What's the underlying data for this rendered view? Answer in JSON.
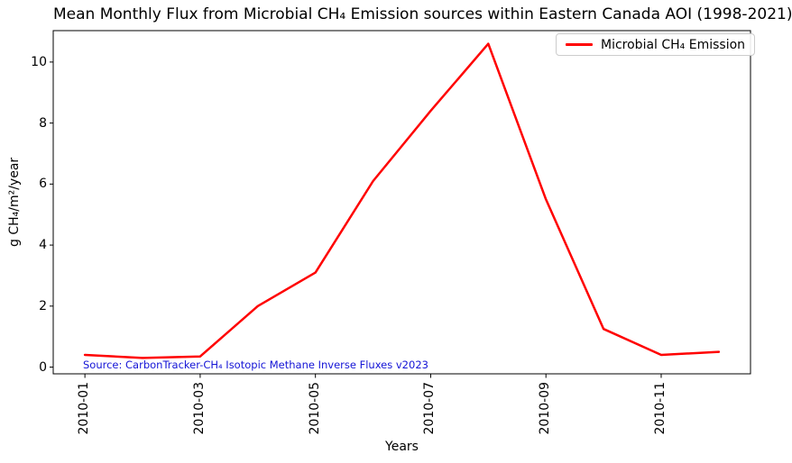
{
  "title": "Mean Monthly Flux from Microbial CH₄ Emission sources within Eastern Canada AOI (1998-2021)",
  "legend": {
    "label": "Microbial CH₄ Emission"
  },
  "source_note": "Source: CarbonTracker-CH₄ Isotopic Methane Inverse Fluxes v2023",
  "colors": {
    "line": "#ff0000",
    "source_note": "#1414d6",
    "axis": "#000000",
    "legend_border": "#cccccc",
    "text": "#000000"
  },
  "chart_data": {
    "type": "line",
    "title": "Mean Monthly Flux from Microbial CH₄ Emission sources within Eastern Canada AOI (1998-2021)",
    "xlabel": "Years",
    "ylabel": "g CH₄/m²/year",
    "x": [
      "2010-01",
      "2010-02",
      "2010-03",
      "2010-04",
      "2010-05",
      "2010-06",
      "2010-07",
      "2010-08",
      "2010-09",
      "2010-10",
      "2010-11",
      "2010-12"
    ],
    "series": [
      {
        "name": "Microbial CH₄ Emission",
        "color": "#ff0000",
        "values": [
          0.4,
          0.3,
          0.35,
          2.0,
          3.1,
          6.1,
          8.4,
          10.6,
          5.5,
          1.25,
          0.4,
          0.5
        ]
      }
    ],
    "xtick_indices": [
      0,
      2,
      4,
      6,
      8,
      10
    ],
    "xtick_labels": [
      "2010-01",
      "2010-03",
      "2010-05",
      "2010-07",
      "2010-09",
      "2010-11"
    ],
    "yticks": [
      0,
      2,
      4,
      6,
      8,
      10
    ],
    "ylim": [
      -0.22,
      11.03
    ],
    "x_margin": 0.55,
    "grid": false,
    "legend_position": "upper-right",
    "annotation": "Source: CarbonTracker-CH₄ Isotopic Methane Inverse Fluxes v2023"
  }
}
